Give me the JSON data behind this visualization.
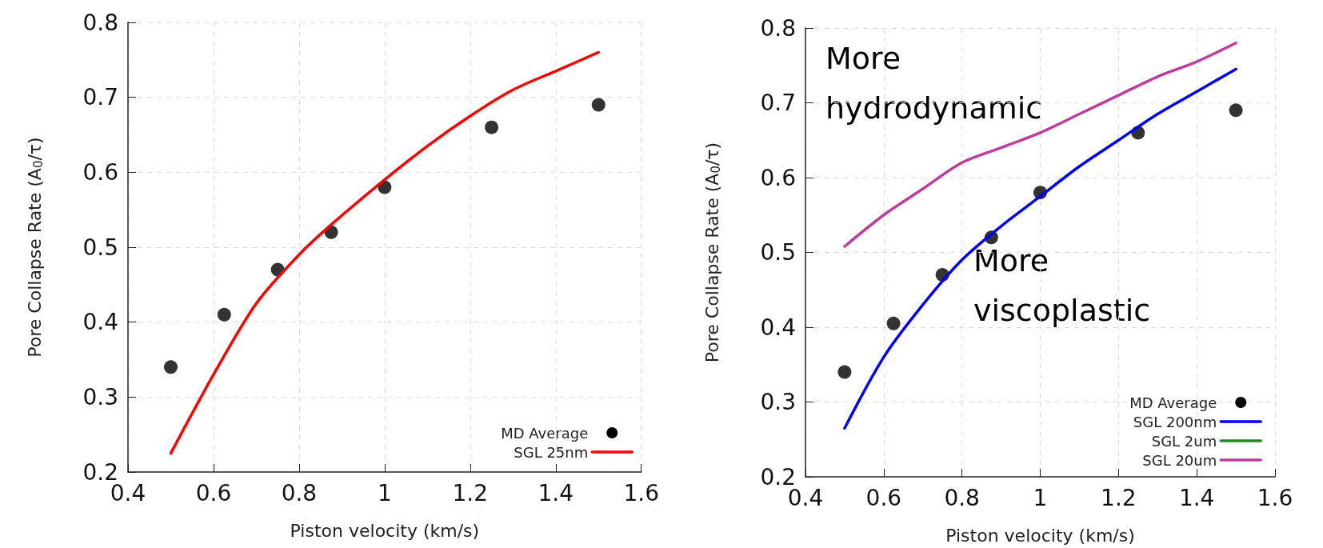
{
  "chart_data": [
    {
      "type": "line",
      "xlabel": "Piston velocity (km/s)",
      "ylabel": "Pore Collapse Rate (A$_{0}$/τ)",
      "xlim": [
        0.4,
        1.6
      ],
      "ylim": [
        0.2,
        0.8
      ],
      "xticks": [
        0.4,
        0.6,
        0.8,
        1,
        1.2,
        1.4,
        1.6
      ],
      "yticks": [
        0.2,
        0.3,
        0.4,
        0.5,
        0.6,
        0.7,
        0.8
      ],
      "grid": true,
      "legend": "bottom right",
      "series": [
        {
          "name": "MD Average",
          "type": "scatter",
          "marker": "circle",
          "color": "#000000",
          "x": [
            0.5,
            0.625,
            0.75,
            0.875,
            1.0,
            1.25,
            1.5
          ],
          "values": [
            0.34,
            0.41,
            0.47,
            0.52,
            0.58,
            0.66,
            0.69
          ]
        },
        {
          "name": "SGL 25nm",
          "type": "line",
          "marker": "none",
          "color": "#ff0000",
          "x": [
            0.5,
            0.6,
            0.7,
            0.8,
            0.875,
            1.0,
            1.1,
            1.2,
            1.3,
            1.4,
            1.5
          ],
          "values": [
            0.225,
            0.33,
            0.425,
            0.49,
            0.53,
            0.59,
            0.635,
            0.675,
            0.71,
            0.735,
            0.76
          ]
        }
      ]
    },
    {
      "type": "line",
      "xlabel": "Piston velocity (km/s)",
      "ylabel": "Pore Collapse Rate (A$_{0}$/τ)",
      "xlim": [
        0.4,
        1.6
      ],
      "ylim": [
        0.2,
        0.8
      ],
      "xticks": [
        0.4,
        0.6,
        0.8,
        1,
        1.2,
        1.4,
        1.6
      ],
      "yticks": [
        0.2,
        0.3,
        0.4,
        0.5,
        0.6,
        0.7,
        0.8
      ],
      "grid": true,
      "legend": "bottom right",
      "annotations": [
        "More\nhydrodynamic",
        "More\nviscoplastic"
      ],
      "series": [
        {
          "name": "MD Average",
          "type": "scatter",
          "marker": "circle",
          "color": "#000000",
          "x": [
            0.5,
            0.625,
            0.75,
            0.875,
            1.0,
            1.25,
            1.5
          ],
          "values": [
            0.34,
            0.405,
            0.47,
            0.52,
            0.58,
            0.66,
            0.69
          ]
        },
        {
          "name": "SGL 200nm",
          "type": "line",
          "marker": "none",
          "color": "#0000ff",
          "x": [
            0.5,
            0.6,
            0.7,
            0.8,
            0.9,
            1.0,
            1.1,
            1.2,
            1.3,
            1.4,
            1.5
          ],
          "values": [
            0.265,
            0.36,
            0.43,
            0.49,
            0.535,
            0.575,
            0.615,
            0.65,
            0.685,
            0.715,
            0.745
          ]
        },
        {
          "name": "SGL 2um",
          "type": "line",
          "marker": "none",
          "color": "#228b22"
        },
        {
          "name": "SGL 20um",
          "type": "line",
          "marker": "none",
          "color": "#c03c9c",
          "x": [
            0.5,
            0.6,
            0.7,
            0.8,
            0.9,
            1.0,
            1.1,
            1.2,
            1.3,
            1.4,
            1.5
          ],
          "values": [
            0.508,
            0.55,
            0.585,
            0.62,
            0.64,
            0.66,
            0.685,
            0.71,
            0.735,
            0.755,
            0.78
          ]
        }
      ]
    }
  ]
}
